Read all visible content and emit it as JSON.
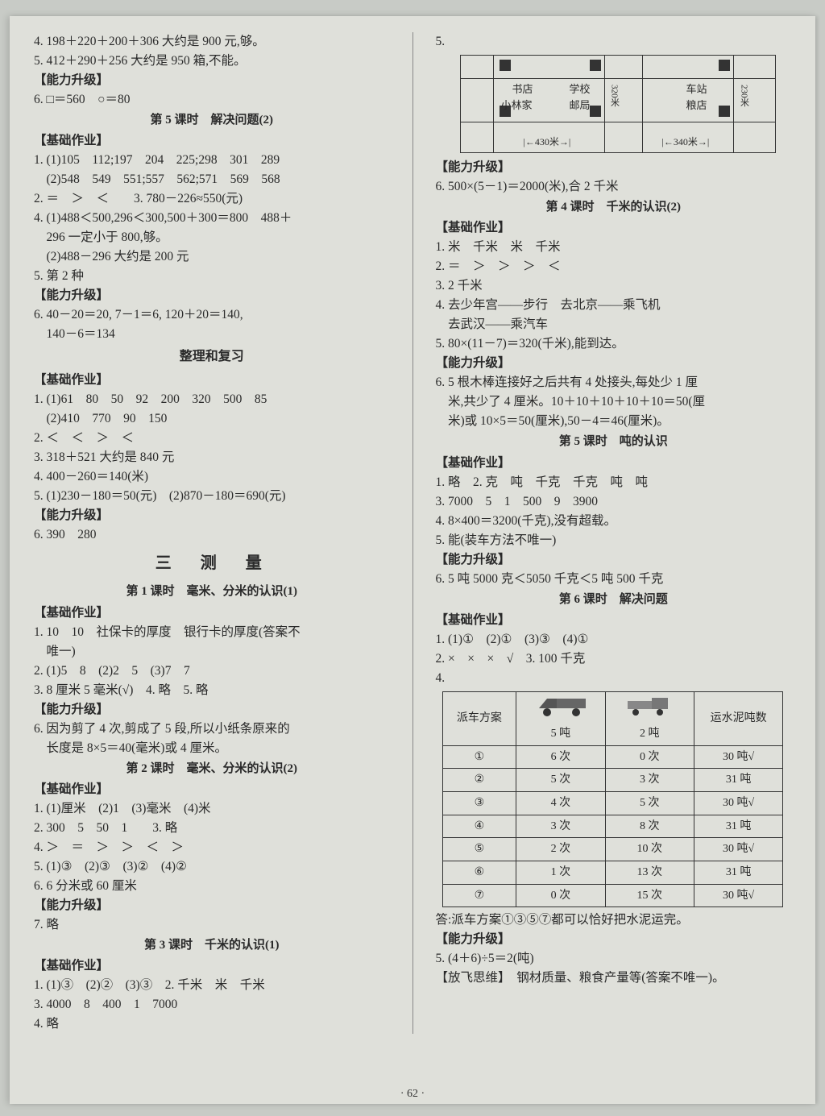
{
  "page_number": "· 62 ·",
  "left": {
    "l4": "4. 198＋220＋200＋306 大约是 900 元,够。",
    "l5": "5. 412＋290＋256 大约是 950 箱,不能。",
    "tag_nl1": "【能力升级】",
    "l6": "6. □＝560　○＝80",
    "h5": "第 5 课时　解决问题(2)",
    "tag_jc1": "【基础作业】",
    "p5_1": "1. (1)105　112;197　204　225;298　301　289",
    "p5_1b": "　(2)548　549　551;557　562;571　569　568",
    "p5_2": "2. ＝　＞　＜　　3. 780－226≈550(元)",
    "p5_4": "4. (1)488＜500,296＜300,500＋300＝800　488＋",
    "p5_4b": "　296 一定小于 800,够。",
    "p5_4c": "　(2)488－296 大约是 200 元",
    "p5_5": "5. 第 2 种",
    "tag_nl2": "【能力升级】",
    "p5_6": "6. 40－20＝20, 7－1＝6, 120＋20＝140,",
    "p5_6b": "　140－6＝134",
    "h_zlfx": "整理和复习",
    "tag_jc2": "【基础作业】",
    "zl_1": "1. (1)61　80　50　92　200　320　500　85",
    "zl_1b": "　(2)410　770　90　150",
    "zl_2": "2. ＜　＜　＞　＜",
    "zl_3": "3. 318＋521 大约是 840 元",
    "zl_4": "4. 400－260＝140(米)",
    "zl_5": "5. (1)230－180＝50(元)　(2)870－180＝690(元)",
    "tag_nl3": "【能力升级】",
    "zl_6": "6. 390　280",
    "h_san": "三　测　量",
    "h1": "第 1 课时　毫米、分米的认识(1)",
    "tag_jc3": "【基础作业】",
    "c1_1": "1. 10　10　社保卡的厚度　银行卡的厚度(答案不",
    "c1_1b": "　唯一)",
    "c1_2": "2. (1)5　8　(2)2　5　(3)7　7",
    "c1_3": "3. 8 厘米 5 毫米(√)　4. 略　5. 略",
    "tag_nl4": "【能力升级】",
    "c1_6": "6. 因为剪了 4 次,剪成了 5 段,所以小纸条原来的",
    "c1_6b": "　长度是 8×5＝40(毫米)或 4 厘米。",
    "h2": "第 2 课时　毫米、分米的认识(2)",
    "tag_jc4": "【基础作业】",
    "c2_1": "1. (1)厘米　(2)1　(3)毫米　(4)米",
    "c2_2": "2. 300　5　50　1　　3. 略",
    "c2_4": "4. ＞　＝　＞　＞　＜　＞",
    "c2_5": "5. (1)③　(2)③　(3)②　(4)②",
    "c2_6": "6. 6 分米或 60 厘米",
    "tag_nl5": "【能力升级】",
    "c2_7": "7. 略",
    "h3": "第 3 课时　千米的认识(1)",
    "tag_jc5": "【基础作业】",
    "c3_1": "1. (1)③　(2)②　(3)③　2. 千米　米　千米",
    "c3_3": "3. 4000　8　400　1　7000",
    "c3_4": "4. 略"
  },
  "right": {
    "r5": "5.",
    "map": {
      "shudian": "书店",
      "xuexiao": "学校",
      "chezhan": "车站",
      "xiaolin": "小林家",
      "youju": "邮局",
      "liangdian": "粮店",
      "d320": "320米",
      "d230": "230米",
      "d430": "430米",
      "d340": "340米"
    },
    "tag_nl6": "【能力升级】",
    "r6": "6. 500×(5－1)＝2000(米),合 2 千米",
    "h4r": "第 4 课时　千米的认识(2)",
    "tag_jc6": "【基础作业】",
    "k2_1": "1. 米　千米　米　千米",
    "k2_2": "2. ＝　＞　＞　＞　＜",
    "k2_3": "3. 2 千米",
    "k2_4": "4. 去少年宫——步行　去北京——乘飞机",
    "k2_4b": "　去武汉——乘汽车",
    "k2_5": "5. 80×(11－7)＝320(千米),能到达。",
    "tag_nl7": "【能力升级】",
    "k2_6": "6. 5 根木棒连接好之后共有 4 处接头,每处少 1 厘",
    "k2_6b": "　米,共少了 4 厘米。10＋10＋10＋10＋10＝50(厘",
    "k2_6c": "　米)或 10×5＝50(厘米),50－4＝46(厘米)。",
    "h5r": "第 5 课时　吨的认识",
    "tag_jc7": "【基础作业】",
    "d_1": "1. 略　2. 克　吨　千克　千克　吨　吨",
    "d_3": "3. 7000　5　1　500　9　3900",
    "d_4": "4. 8×400＝3200(千克),没有超载。",
    "d_5": "5. 能(装车方法不唯一)",
    "tag_nl8": "【能力升级】",
    "d_6": "6. 5 吨 5000 克＜5050 千克＜5 吨 500 千克",
    "h6r": "第 6 课时　解决问题",
    "tag_jc8": "【基础作业】",
    "j_1": "1. (1)①　(2)①　(3)③　(4)①",
    "j_2": "2. ×　×　×　√　3. 100 千克",
    "j_4": "4.",
    "table": {
      "h1": "派车方案",
      "h2": "5 吨",
      "h3": "2 吨",
      "h4": "运水泥吨数",
      "rows": [
        {
          "n": "①",
          "a": "6 次",
          "b": "0 次",
          "c": "30 吨√"
        },
        {
          "n": "②",
          "a": "5 次",
          "b": "3 次",
          "c": "31 吨"
        },
        {
          "n": "③",
          "a": "4 次",
          "b": "5 次",
          "c": "30 吨√"
        },
        {
          "n": "④",
          "a": "3 次",
          "b": "8 次",
          "c": "31 吨"
        },
        {
          "n": "⑤",
          "a": "2 次",
          "b": "10 次",
          "c": "30 吨√"
        },
        {
          "n": "⑥",
          "a": "1 次",
          "b": "13 次",
          "c": "31 吨"
        },
        {
          "n": "⑦",
          "a": "0 次",
          "b": "15 次",
          "c": "30 吨√"
        }
      ]
    },
    "j_ans": "答:派车方案①③⑤⑦都可以恰好把水泥运完。",
    "tag_nl9": "【能力升级】",
    "j_5": "5. (4＋6)÷5＝2(吨)",
    "ff": "【放飞思维】　钢材质量、粮食产量等(答案不唯一)。"
  },
  "style": {
    "bg": "#dfe0da",
    "text": "#2a2a2a",
    "border": "#333333",
    "font_size_body": 15.5,
    "font_size_heading": 16
  }
}
